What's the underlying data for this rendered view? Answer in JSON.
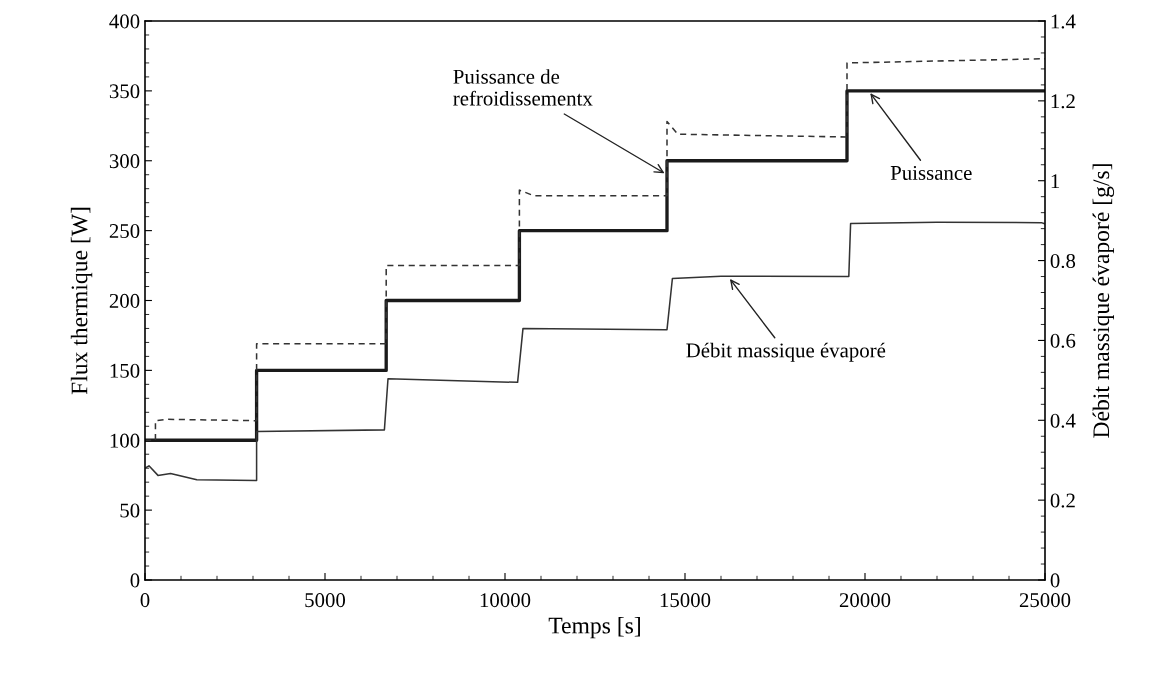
{
  "chart_data": {
    "type": "line",
    "xlabel": "Temps [s]",
    "ylabel": "Flux thermique [W]",
    "y2label": "Débit massique évaporé [g/s]",
    "xlim": [
      0,
      25000
    ],
    "xticks": [
      0,
      5000,
      10000,
      15000,
      20000,
      25000
    ],
    "ylim": [
      0,
      400
    ],
    "yticks": [
      0,
      50,
      100,
      150,
      200,
      250,
      300,
      350,
      400
    ],
    "y2lim": [
      0,
      1.4
    ],
    "y2ticks": [
      0,
      0.2,
      0.4,
      0.6,
      0.8,
      1,
      1.2,
      1.4
    ],
    "grid": false,
    "legend": false,
    "marker": "none",
    "series": [
      {
        "color": "#1a1a1a",
        "line_style": "solid",
        "x": [
          0,
          3100,
          3100,
          6700,
          6700,
          10400,
          10400,
          14500,
          14500,
          19500,
          19500,
          25000
        ],
        "values": [
          100,
          100,
          150,
          150,
          200,
          200,
          250,
          250,
          300,
          300,
          350,
          350
        ]
      },
      {
        "color": "#333333",
        "line_style": "dashed",
        "x": [
          0,
          290,
          290,
          600,
          3100,
          3100,
          6700,
          6700,
          10400,
          10400,
          10800,
          14500,
          14500,
          14800,
          19500,
          19500,
          25000
        ],
        "values": [
          100,
          100,
          114,
          115,
          114,
          169,
          169,
          225,
          225,
          279,
          275,
          275,
          328,
          319,
          317,
          370,
          373
        ]
      },
      {
        "color": "#333333",
        "line_style": "solid",
        "axis": "y2",
        "x": [
          0,
          110,
          360,
          710,
          1440,
          3100,
          3100,
          6650,
          6650,
          6750,
          10350,
          10350,
          10500,
          14450,
          14500,
          14650,
          16000,
          19450,
          19550,
          19600,
          22000,
          24900,
          25000
        ],
        "values": [
          0.28,
          0.286,
          0.262,
          0.267,
          0.251,
          0.249,
          0.372,
          0.376,
          0.376,
          0.504,
          0.495,
          0.495,
          0.63,
          0.627,
          0.627,
          0.755,
          0.761,
          0.76,
          0.76,
          0.893,
          0.896,
          0.895,
          0.892
        ]
      }
    ],
    "annotations": [
      {
        "text": "Puissance de\nrefroidissementx",
        "x": 14500,
        "y": 290
      },
      {
        "text": "Puissance",
        "x": 20100,
        "y": 350
      },
      {
        "text": "Débit massique évaporé",
        "x": 16200,
        "y": 217
      }
    ]
  }
}
